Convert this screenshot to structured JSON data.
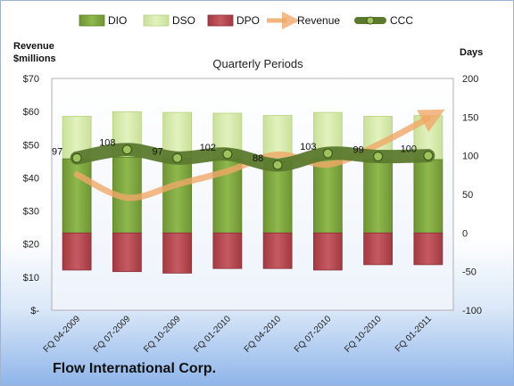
{
  "company": "Flow International Corp.",
  "chart_data": {
    "type": "bar",
    "title": "Quarterly Periods",
    "left_axis_label": [
      "Revenue",
      "$millions"
    ],
    "right_axis_label": "Days",
    "categories": [
      "FQ 04-2009",
      "FQ 07-2009",
      "FQ 10-2009",
      "FQ 01-2010",
      "FQ 04-2010",
      "FQ 07-2010",
      "FQ 10-2010",
      "FQ 01-2011"
    ],
    "left_ticks": [
      "$-",
      "$10",
      "$20",
      "$30",
      "$40",
      "$50",
      "$60",
      "$70"
    ],
    "left_ylim": [
      0,
      70
    ],
    "right_ticks": [
      "-100",
      "-50",
      "0",
      "50",
      "100",
      "150",
      "200"
    ],
    "right_ylim": [
      -100,
      200
    ],
    "legend_position": "top",
    "series": [
      {
        "name": "DIO",
        "kind": "bar",
        "color": "#7ea440",
        "values": [
          96,
          98,
          97,
          96,
          94,
          96,
          95,
          95
        ]
      },
      {
        "name": "DSO",
        "kind": "bar",
        "color": "#d6eaa8",
        "values": [
          55,
          59,
          59,
          59,
          58,
          60,
          56,
          57
        ]
      },
      {
        "name": "DPO",
        "kind": "bar",
        "color": "#b8464e",
        "values": [
          -48,
          -50,
          -52,
          -46,
          -46,
          -48,
          -41,
          -41
        ]
      },
      {
        "name": "Revenue",
        "kind": "line",
        "color": "#f0a868",
        "values": [
          41,
          34,
          38,
          42,
          47,
          44,
          50,
          58
        ]
      },
      {
        "name": "CCC",
        "kind": "line",
        "color": "#5c7a2e",
        "values": [
          97,
          108,
          97,
          102,
          88,
          103,
          99,
          100
        ]
      }
    ],
    "ccc_labels": [
      "97",
      "108",
      "97",
      "102",
      "88",
      "103",
      "99",
      "100"
    ]
  }
}
